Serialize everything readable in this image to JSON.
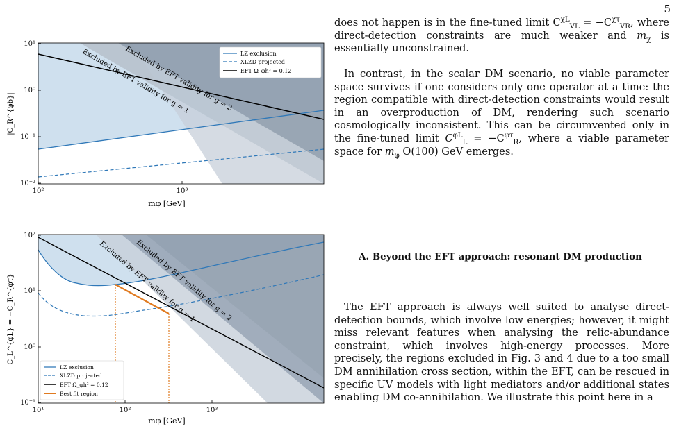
{
  "page": {
    "number": "5"
  },
  "figure_top": {
    "xlabel": "mφ [GeV]",
    "ylabel": "|C_R^{φb}|",
    "x_ticks": [
      "10²",
      "10³"
    ],
    "y_ticks": [
      "10¹",
      "10⁰",
      "10⁻¹",
      "10⁻²"
    ],
    "band_labels": [
      "Excluded by EFT validity for g = 1",
      "Excluded by EFT validity for g = 2"
    ],
    "legend": [
      "LZ exclusion",
      "XLZD projected",
      "EFT Ω_φh² = 0.12"
    ]
  },
  "figure_bottom": {
    "xlabel": "mφ [GeV]",
    "ylabel": "C_L^{φL} = −C_R^{φτ}",
    "x_ticks": [
      "10¹",
      "10²",
      "10³"
    ],
    "y_ticks": [
      "10²",
      "10¹",
      "10⁰",
      "10⁻¹"
    ],
    "band_labels": [
      "Excluded by EFT validity for g = 1",
      "Excluded by EFT validity for g = 2"
    ],
    "legend": [
      "LZ exclusion",
      "XLZD projected",
      "EFT Ω_φh² = 0.12",
      "Best fit region"
    ]
  },
  "chart_data": [
    {
      "type": "line",
      "x": [
        100,
        200,
        500,
        1000,
        2000,
        5000
      ],
      "xlim": [
        100,
        5000
      ],
      "ylim": [
        0.006,
        10
      ],
      "xscale": "log",
      "yscale": "log",
      "series": [
        {
          "name": "LZ exclusion",
          "x": [
            100,
            5000
          ],
          "y": [
            0.045,
            0.3
          ]
        },
        {
          "name": "XLZD projected",
          "x": [
            100,
            5000
          ],
          "y": [
            0.0095,
            0.065
          ]
        },
        {
          "name": "EFT Ω_φh² = 0.12",
          "x": [
            100,
            5000
          ],
          "y": [
            6.5,
            0.13
          ]
        }
      ]
    },
    {
      "type": "line",
      "xlim": [
        10,
        5000
      ],
      "ylim": [
        0.1,
        100
      ],
      "xscale": "log",
      "yscale": "log",
      "series": [
        {
          "name": "LZ exclusion",
          "x": [
            10,
            15,
            25,
            50,
            80,
            150,
            400,
            1000,
            5000
          ],
          "y": [
            40,
            20,
            12,
            9.5,
            10.5,
            14,
            22,
            32,
            70
          ]
        },
        {
          "name": "XLZD projected",
          "x": [
            10,
            15,
            25,
            50,
            80,
            150,
            400,
            1000,
            5000
          ],
          "y": [
            6.5,
            3.5,
            2.3,
            2.0,
            2.2,
            2.9,
            4.5,
            6.5,
            15
          ]
        },
        {
          "name": "EFT Ω_φh² = 0.12",
          "x": [
            10,
            5000
          ],
          "y": [
            80,
            0.18
          ]
        },
        {
          "name": "Best fit region",
          "x": [
            78,
            320
          ],
          "y": [
            10,
            2.6
          ]
        }
      ]
    }
  ],
  "text": {
    "p1_line1": "does not happen is in the fine-tuned limit C",
    "p1_sup1": "χL",
    "p1_sub1": "VL",
    "p1_mid": " = −C",
    "p1_sup2": "χτ",
    "p1_sub2": "VR",
    "p1_end": ",",
    "p1_rest": "where direct-detection constraints are much weaker and",
    "p1_m": "m",
    "p1_msub": "χ",
    "p1_tail": " is essentially unconstrained.",
    "p2": "In contrast, in the scalar DM scenario, no viable parameter space survives if one considers only one operator at a time: the region compatible with direct-detection constraints would result in an overproduction of DM, rendering such scenario cosmologically inconsistent. This can be circumvented only in the fine-tuned limit",
    "p2_c1": "C",
    "p2_c1sup": "φL",
    "p2_c1sub": "L",
    "p2_eq": " = −C",
    "p2_c2sup": "φτ",
    "p2_c2sub": "R",
    "p2_after": ", where a viable parameter space for",
    "p2_m": "m",
    "p2_msub": "φ",
    "p2_tail": " O(100) GeV emerges.",
    "section": "A.   Beyond the EFT approach: resonant DM production",
    "p3": "The EFT approach is always well suited to analyse direct-detection bounds, which involve low energies; however, it might miss relevant features when analysing the relic-abundance constraint, which involves high-energy processes. More precisely, the regions excluded in Fig. 3 and 4 due to a too small DM annihilation cross section, within the EFT, can be rescued in specific UV models with light mediators and/or additional states enabling DM co-annihilation. We illustrate this point here in a"
  }
}
